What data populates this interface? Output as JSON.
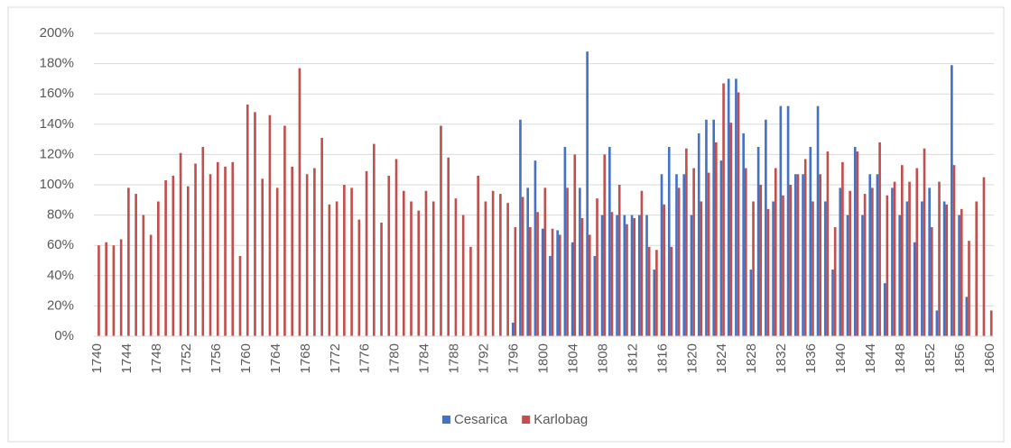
{
  "chart_data": {
    "type": "bar",
    "categories": [
      "1740",
      null,
      null,
      null,
      "1744",
      null,
      null,
      null,
      "1748",
      null,
      null,
      null,
      "1752",
      null,
      null,
      null,
      "1756",
      null,
      null,
      null,
      "1760",
      null,
      null,
      null,
      "1764",
      null,
      null,
      null,
      "1768",
      null,
      null,
      null,
      "1772",
      null,
      null,
      null,
      "1776",
      null,
      null,
      null,
      "1780",
      null,
      null,
      null,
      "1784",
      null,
      null,
      null,
      "1788",
      null,
      null,
      null,
      "1792",
      null,
      null,
      null,
      "1796",
      null,
      null,
      null,
      "1800",
      null,
      null,
      null,
      "1804",
      null,
      null,
      null,
      "1808",
      null,
      null,
      null,
      "1812",
      null,
      null,
      null,
      "1816",
      null,
      null,
      null,
      "1820",
      null,
      null,
      null,
      "1824",
      null,
      null,
      null,
      "1828",
      null,
      null,
      null,
      "1832",
      null,
      null,
      null,
      "1836",
      null,
      null,
      null,
      "1840",
      null,
      null,
      null,
      "1844",
      null,
      null,
      null,
      "1848",
      null,
      null,
      null,
      "1852",
      null,
      null,
      null,
      "1856",
      null,
      null,
      null,
      "1860"
    ],
    "series": [
      {
        "name": "Cesarica",
        "color": "#4472c4",
        "values": [
          null,
          null,
          null,
          null,
          null,
          null,
          null,
          null,
          null,
          null,
          null,
          null,
          null,
          null,
          null,
          null,
          null,
          null,
          null,
          null,
          null,
          null,
          null,
          null,
          null,
          null,
          null,
          null,
          null,
          null,
          null,
          null,
          null,
          null,
          null,
          null,
          null,
          null,
          null,
          null,
          null,
          null,
          null,
          null,
          null,
          null,
          null,
          null,
          null,
          null,
          null,
          null,
          null,
          null,
          null,
          null,
          9,
          143,
          98,
          116,
          71,
          53,
          70,
          125,
          62,
          98,
          188,
          53,
          80,
          125,
          80,
          80,
          80,
          80,
          80,
          44,
          107,
          125,
          107,
          107,
          80,
          134,
          143,
          143,
          116,
          170,
          170,
          134,
          44,
          125,
          143,
          89,
          152,
          152,
          107,
          107,
          125,
          152,
          89,
          44,
          98,
          80,
          125,
          80,
          107,
          107,
          35,
          98,
          80,
          89,
          62,
          89,
          98,
          17,
          89,
          179,
          80,
          26,
          null,
          null,
          null
        ]
      },
      {
        "name": "Karlobag",
        "color": "#c0504d",
        "values": [
          60,
          62,
          60,
          64,
          98,
          94,
          80,
          67,
          89,
          103,
          106,
          121,
          99,
          114,
          125,
          107,
          115,
          112,
          115,
          53,
          153,
          148,
          104,
          146,
          98,
          139,
          112,
          177,
          107,
          111,
          131,
          87,
          89,
          100,
          98,
          77,
          109,
          127,
          75,
          106,
          117,
          96,
          89,
          83,
          96,
          89,
          139,
          118,
          91,
          80,
          59,
          106,
          89,
          96,
          94,
          88,
          72,
          92,
          72,
          82,
          98,
          71,
          67,
          98,
          120,
          78,
          67,
          91,
          120,
          82,
          100,
          74,
          78,
          96,
          59,
          57,
          87,
          59,
          98,
          124,
          111,
          89,
          108,
          128,
          167,
          141,
          161,
          111,
          89,
          100,
          84,
          111,
          93,
          100,
          107,
          117,
          89,
          107,
          122,
          72,
          115,
          96,
          122,
          94,
          98,
          128,
          93,
          102,
          113,
          102,
          111,
          124,
          72,
          102,
          87,
          113,
          84,
          63,
          89,
          105,
          17
        ]
      }
    ],
    "ylim": [
      0,
      200
    ],
    "yticks": [
      {
        "value": 0,
        "label": "0%"
      },
      {
        "value": 20,
        "label": "20%"
      },
      {
        "value": 40,
        "label": "40%"
      },
      {
        "value": 60,
        "label": "60%"
      },
      {
        "value": 80,
        "label": "80%"
      },
      {
        "value": 100,
        "label": "100%"
      },
      {
        "value": 120,
        "label": "120%"
      },
      {
        "value": 140,
        "label": "140%"
      },
      {
        "value": 160,
        "label": "160%"
      },
      {
        "value": 180,
        "label": "180%"
      },
      {
        "value": 200,
        "label": "200%"
      }
    ],
    "grid": true,
    "legend": "bottom"
  }
}
